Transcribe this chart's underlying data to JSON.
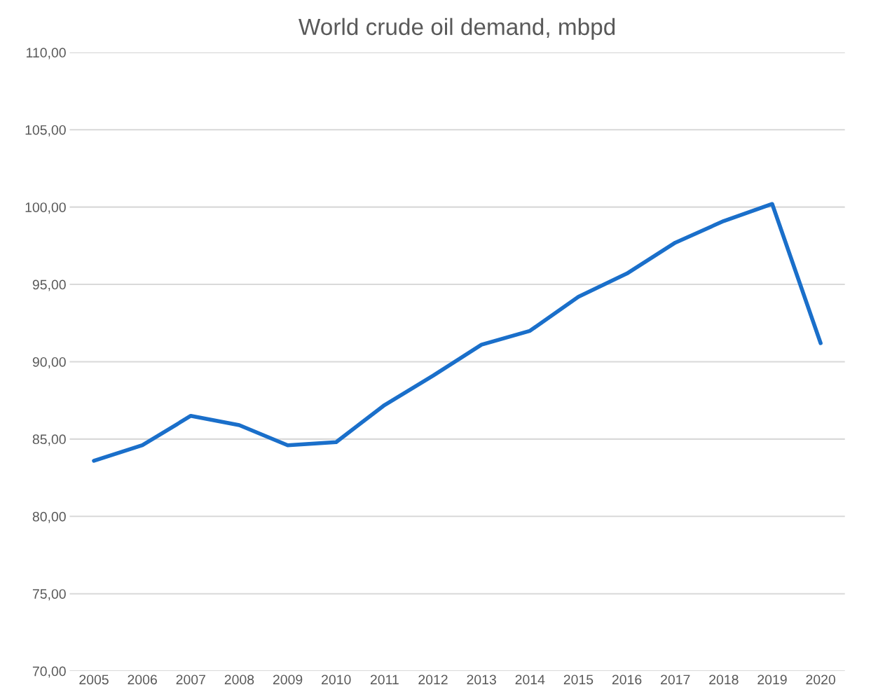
{
  "chart_data": {
    "type": "line",
    "title": "World crude oil demand, mbpd",
    "categories": [
      "2005",
      "2006",
      "2007",
      "2008",
      "2009",
      "2010",
      "2011",
      "2012",
      "2013",
      "2014",
      "2015",
      "2016",
      "2017",
      "2018",
      "2019",
      "2020"
    ],
    "series": [
      {
        "color": "#1a6fca",
        "values": [
          83.6,
          84.6,
          86.5,
          85.9,
          84.6,
          84.8,
          87.2,
          89.1,
          91.1,
          92.0,
          94.2,
          95.7,
          97.7,
          99.1,
          100.2,
          91.2
        ]
      }
    ],
    "ylim": [
      70,
      110
    ],
    "yticks": [
      {
        "value": 70,
        "label": "70,00"
      },
      {
        "value": 75,
        "label": "75,00"
      },
      {
        "value": 80,
        "label": "80,00"
      },
      {
        "value": 85,
        "label": "85,00"
      },
      {
        "value": 90,
        "label": "90,00"
      },
      {
        "value": 95,
        "label": "95,00"
      },
      {
        "value": 100,
        "label": "100,00"
      },
      {
        "value": 105,
        "label": "105,00"
      },
      {
        "value": 110,
        "label": "110,00"
      }
    ],
    "grid": "y",
    "legend": false,
    "marker": "none",
    "line_style": "solid"
  }
}
